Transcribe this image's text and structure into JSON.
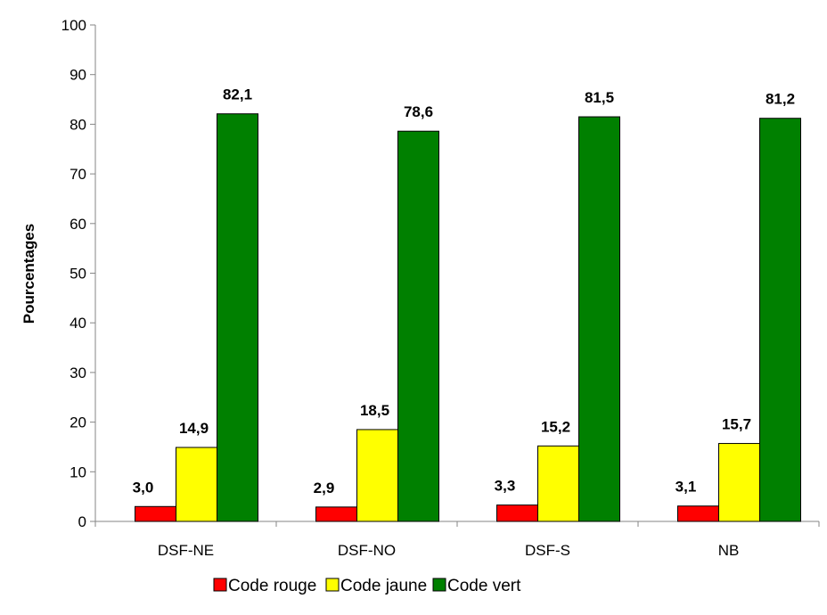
{
  "chart_data": {
    "type": "bar",
    "title": "",
    "xlabel": "",
    "ylabel": "Pourcentages",
    "ylim": [
      0,
      100
    ],
    "yticks": [
      "0",
      "10",
      "20",
      "30",
      "40",
      "50",
      "60",
      "70",
      "80",
      "90",
      "100"
    ],
    "grid": false,
    "legend_position": "bottom",
    "categories": [
      "DSF-NE",
      "DSF-NO",
      "DSF-S",
      "NB"
    ],
    "series": [
      {
        "name": "Code rouge",
        "color": "#ff0000",
        "values": [
          3.0,
          2.9,
          3.3,
          3.1
        ],
        "labels": [
          "3,0",
          "2,9",
          "3,3",
          "3,1"
        ]
      },
      {
        "name": "Code jaune",
        "color": "#ffff00",
        "values": [
          14.9,
          18.5,
          15.2,
          15.7
        ],
        "labels": [
          "14,9",
          "18,5",
          "15,2",
          "15,7"
        ]
      },
      {
        "name": "Code vert",
        "color": "#008000",
        "values": [
          82.1,
          78.6,
          81.5,
          81.2
        ],
        "labels": [
          "82,1",
          "78,6",
          "81,5",
          "81,2"
        ]
      }
    ]
  }
}
